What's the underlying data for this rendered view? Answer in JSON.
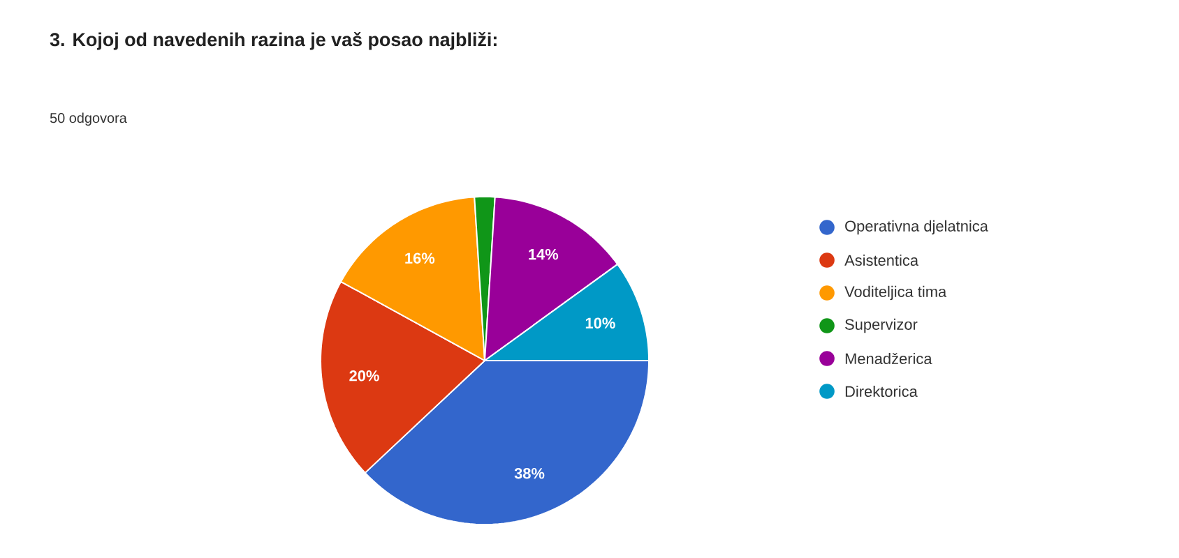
{
  "chart_data": {
    "type": "pie",
    "title": "3. Kojoj od navedenih razina je vaš posao najbliži:",
    "subtitle": "50 odgovora",
    "categories": [
      "Operativna djelatnica",
      "Asistentica",
      "Voditeljica tima",
      "Supervizor",
      "Menadžerica",
      "Direktorica"
    ],
    "values": [
      38,
      20,
      16,
      2,
      14,
      10
    ],
    "value_labels": [
      "38%",
      "20%",
      "16%",
      null,
      "14%",
      "10%"
    ],
    "colors": [
      "#3366cc",
      "#dc3912",
      "#ff9900",
      "#109618",
      "#990099",
      "#0099c6"
    ],
    "legend": "right"
  }
}
